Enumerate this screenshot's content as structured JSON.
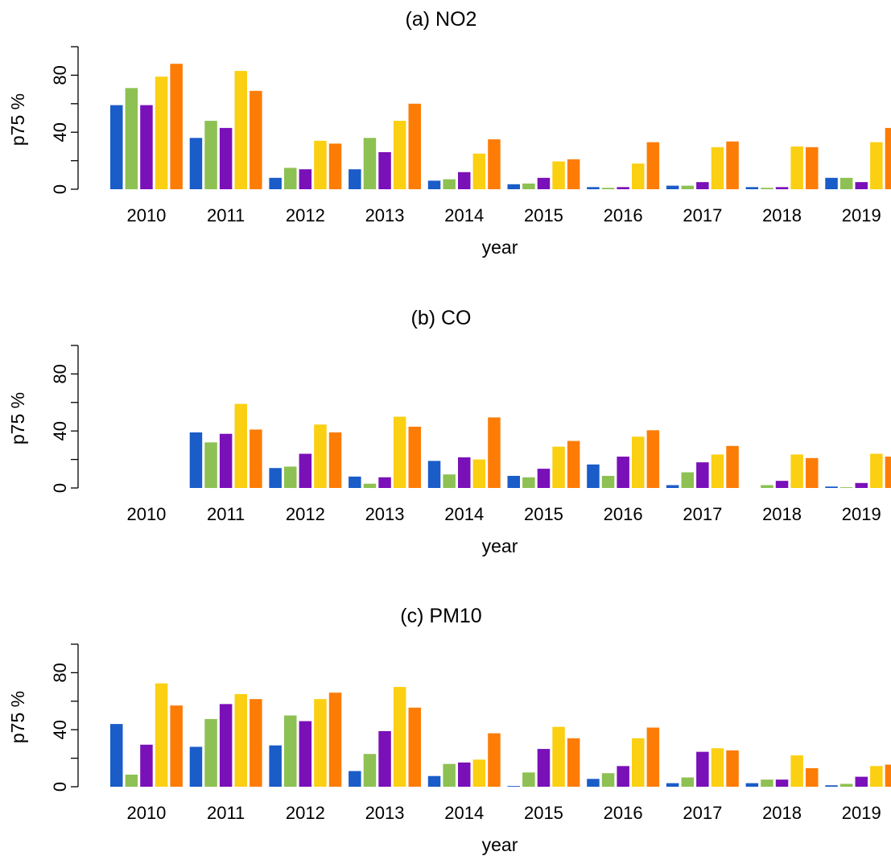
{
  "chart_data": [
    {
      "type": "bar",
      "title": "(a) NO2",
      "xlabel": "year",
      "ylabel": "p75 %",
      "ylim": [
        0,
        100
      ],
      "yticks": [
        "0",
        "40",
        "80"
      ],
      "categories": [
        "2010",
        "2011",
        "2012",
        "2013",
        "2014",
        "2015",
        "2016",
        "2017",
        "2018",
        "2019"
      ],
      "series": [
        {
          "color": "#1a5cc8",
          "values": [
            59,
            36,
            8,
            14,
            6,
            3.5,
            1.5,
            2.5,
            1.5,
            8
          ]
        },
        {
          "color": "#8dc153",
          "values": [
            71,
            48,
            15,
            36,
            7,
            4,
            1,
            2.5,
            1,
            8
          ]
        },
        {
          "color": "#7a10b8",
          "values": [
            59,
            43,
            14,
            26,
            12,
            8,
            1.5,
            5,
            1.5,
            5
          ]
        },
        {
          "color": "#fbcf12",
          "values": [
            79,
            83,
            34,
            48,
            25,
            19.5,
            18,
            29.5,
            30,
            33
          ]
        },
        {
          "color": "#fd7c06",
          "values": [
            88,
            69,
            32,
            60,
            35,
            21,
            33,
            33.5,
            29.5,
            43
          ]
        }
      ]
    },
    {
      "type": "bar",
      "title": "(b) CO",
      "xlabel": "year",
      "ylabel": "p75 %",
      "ylim": [
        0,
        100
      ],
      "yticks": [
        "0",
        "40",
        "80"
      ],
      "categories": [
        "2010",
        "2011",
        "2012",
        "2013",
        "2014",
        "2015",
        "2016",
        "2017",
        "2018",
        "2019"
      ],
      "series": [
        {
          "color": "#1a5cc8",
          "values": [
            0,
            39,
            14,
            8,
            19,
            8.5,
            16.5,
            2,
            0,
            1
          ]
        },
        {
          "color": "#8dc153",
          "values": [
            0,
            32,
            15,
            3,
            9.5,
            7.5,
            8.5,
            11,
            2,
            0.5
          ]
        },
        {
          "color": "#7a10b8",
          "values": [
            0,
            38,
            24,
            7.5,
            21.5,
            13.5,
            22,
            18,
            5,
            3.5
          ]
        },
        {
          "color": "#fbcf12",
          "values": [
            0,
            59,
            44.5,
            50,
            20,
            29,
            36,
            23.5,
            23.5,
            24
          ]
        },
        {
          "color": "#fd7c06",
          "values": [
            0,
            41,
            39,
            43,
            49.5,
            33,
            40.5,
            29.5,
            21,
            22
          ]
        }
      ]
    },
    {
      "type": "bar",
      "title": "(c) PM10",
      "xlabel": "year",
      "ylabel": "p75 %",
      "ylim": [
        0,
        100
      ],
      "yticks": [
        "0",
        "40",
        "80"
      ],
      "categories": [
        "2010",
        "2011",
        "2012",
        "2013",
        "2014",
        "2015",
        "2016",
        "2017",
        "2018",
        "2019"
      ],
      "series": [
        {
          "color": "#1a5cc8",
          "values": [
            44,
            28,
            29,
            11,
            7.5,
            0.5,
            5.5,
            2.5,
            2.5,
            1
          ]
        },
        {
          "color": "#8dc153",
          "values": [
            8.5,
            47.5,
            50,
            23,
            16,
            10,
            9.5,
            6.5,
            5,
            2
          ]
        },
        {
          "color": "#7a10b8",
          "values": [
            29.5,
            58,
            46,
            39,
            17,
            26.5,
            14.5,
            24.5,
            5,
            7
          ]
        },
        {
          "color": "#fbcf12",
          "values": [
            72.5,
            65,
            61.5,
            70,
            19,
            42,
            34,
            27,
            22,
            14.5
          ]
        },
        {
          "color": "#fd7c06",
          "values": [
            57,
            61.5,
            66,
            55.5,
            37.5,
            34,
            41.5,
            25.5,
            13,
            15.5
          ]
        }
      ]
    }
  ]
}
